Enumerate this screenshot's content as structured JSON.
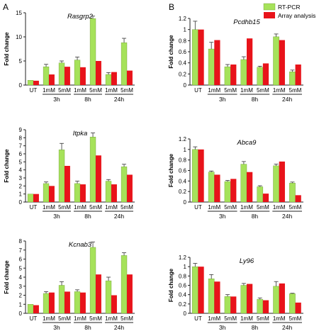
{
  "panel_labels": [
    "A",
    "B"
  ],
  "colors": {
    "rt_pcr": "#a6e25a",
    "array": "#e8131a",
    "axis": "#222222",
    "error": "#333333"
  },
  "legend": {
    "position": "top-right",
    "items": [
      "RT-PCR",
      "Array analysis"
    ]
  },
  "chart_data": [
    {
      "type": "bar",
      "panel": "A",
      "title": "Rasgrp2",
      "ylabel": "Fold change",
      "ylim": [
        0,
        15
      ],
      "yticks": [
        0,
        5,
        10,
        15
      ],
      "categories": [
        "UT",
        "1mM",
        "5mM",
        "1mM",
        "5mM",
        "1mM",
        "5mM"
      ],
      "time_groups": [
        {
          "label": "3h",
          "start": 1,
          "end": 2
        },
        {
          "label": "8h",
          "start": 3,
          "end": 4
        },
        {
          "label": "24h",
          "start": 5,
          "end": 6
        }
      ],
      "series": [
        {
          "name": "RT-PCR",
          "values": [
            1.0,
            3.8,
            4.6,
            5.2,
            13.8,
            2.2,
            8.8
          ],
          "errors": [
            0,
            0.5,
            0.4,
            0.6,
            0.5,
            0.4,
            0.9
          ]
        },
        {
          "name": "Array analysis",
          "values": [
            0.9,
            2.2,
            3.8,
            3.7,
            5.0,
            2.7,
            3.0
          ]
        }
      ]
    },
    {
      "type": "bar",
      "panel": "A",
      "title": "Itpka",
      "ylabel": "Fold change",
      "ylim": [
        0,
        9
      ],
      "yticks": [
        0,
        1,
        2,
        3,
        4,
        5,
        6,
        7,
        8,
        9
      ],
      "categories": [
        "UT",
        "1mM",
        "5mM",
        "1mM",
        "5mM",
        "1mM",
        "5mM"
      ],
      "time_groups": [
        {
          "label": "3h",
          "start": 1,
          "end": 2
        },
        {
          "label": "8h",
          "start": 3,
          "end": 4
        },
        {
          "label": "24h",
          "start": 5,
          "end": 6
        }
      ],
      "series": [
        {
          "name": "RT-PCR",
          "values": [
            1.0,
            2.3,
            6.5,
            2.3,
            8.1,
            2.6,
            4.4
          ],
          "errors": [
            0,
            0.2,
            0.8,
            0.3,
            0.5,
            0.2,
            0.3
          ]
        },
        {
          "name": "Array analysis",
          "values": [
            1.0,
            2.0,
            4.5,
            2.2,
            5.8,
            2.2,
            3.4
          ]
        }
      ]
    },
    {
      "type": "bar",
      "panel": "A",
      "title": "Kcnab3",
      "ylabel": "Fold change",
      "ylim": [
        0,
        8
      ],
      "yticks": [
        0,
        1,
        2,
        3,
        4,
        5,
        6,
        7,
        8
      ],
      "categories": [
        "UT",
        "1mM",
        "5mM",
        "1mM",
        "5mM",
        "1mM",
        "5mM"
      ],
      "time_groups": [
        {
          "label": "3h",
          "start": 1,
          "end": 2
        },
        {
          "label": "8h",
          "start": 3,
          "end": 4
        },
        {
          "label": "24h",
          "start": 5,
          "end": 6
        }
      ],
      "series": [
        {
          "name": "RT-PCR",
          "values": [
            1.0,
            2.2,
            3.1,
            2.4,
            7.3,
            3.6,
            6.4
          ],
          "errors": [
            0,
            0.2,
            0.4,
            0.2,
            0.6,
            0.4,
            0.3
          ]
        },
        {
          "name": "Array analysis",
          "values": [
            0.9,
            2.3,
            2.4,
            2.3,
            4.3,
            2.0,
            4.3
          ]
        }
      ]
    },
    {
      "type": "bar",
      "panel": "B",
      "title": "Pcdhb15",
      "ylabel": "Fold change",
      "ylim": [
        0,
        1.2
      ],
      "yticks": [
        0,
        0.2,
        0.4,
        0.6,
        0.8,
        1,
        1.2
      ],
      "categories": [
        "UT",
        "1mM",
        "5mM",
        "1mM",
        "5mM",
        "1mM",
        "5mM"
      ],
      "time_groups": [
        {
          "label": "3h",
          "start": 1,
          "end": 2
        },
        {
          "label": "8h",
          "start": 3,
          "end": 4
        },
        {
          "label": "24h",
          "start": 5,
          "end": 6
        }
      ],
      "series": [
        {
          "name": "RT-PCR",
          "values": [
            1.0,
            0.65,
            0.33,
            0.46,
            0.32,
            0.87,
            0.24
          ],
          "errors": [
            0.15,
            0.12,
            0.04,
            0.05,
            0.02,
            0.05,
            0.03
          ]
        },
        {
          "name": "Array analysis",
          "values": [
            1.0,
            0.81,
            0.37,
            0.84,
            0.39,
            0.81,
            0.37
          ]
        }
      ]
    },
    {
      "type": "bar",
      "panel": "B",
      "title": "Abca9",
      "ylabel": "Fold change",
      "ylim": [
        0,
        1.2
      ],
      "yticks": [
        0,
        0.2,
        0.4,
        0.6,
        0.8,
        1,
        1.2
      ],
      "categories": [
        "UT",
        "1mM",
        "5mM",
        "1mM",
        "5mM",
        "1mM",
        "5mM"
      ],
      "time_groups": [
        {
          "label": "3h",
          "start": 1,
          "end": 2
        },
        {
          "label": "8h",
          "start": 3,
          "end": 4
        },
        {
          "label": "24h",
          "start": 5,
          "end": 6
        }
      ],
      "series": [
        {
          "name": "RT-PCR",
          "values": [
            1.0,
            0.57,
            0.39,
            0.72,
            0.29,
            0.69,
            0.36
          ],
          "errors": [
            0.05,
            0.02,
            0.02,
            0.05,
            0.02,
            0.03,
            0.02
          ]
        },
        {
          "name": "Array analysis",
          "values": [
            1.0,
            0.52,
            0.44,
            0.57,
            0.16,
            0.77,
            0.13
          ]
        }
      ]
    },
    {
      "type": "bar",
      "panel": "B",
      "title": "Ly96",
      "ylabel": "Fold change",
      "ylim": [
        0,
        1.2
      ],
      "yticks": [
        0,
        0.2,
        0.4,
        0.6,
        0.8,
        1,
        1.2
      ],
      "categories": [
        "UT",
        "1mM",
        "5mM",
        "1mM",
        "5mM",
        "1mM",
        "5mM"
      ],
      "time_groups": [
        {
          "label": "3h",
          "start": 1,
          "end": 2
        },
        {
          "label": "8h",
          "start": 3,
          "end": 4
        },
        {
          "label": "24h",
          "start": 5,
          "end": 6
        }
      ],
      "series": [
        {
          "name": "RT-PCR",
          "values": [
            1.0,
            0.74,
            0.36,
            0.6,
            0.3,
            0.58,
            0.42
          ],
          "errors": [
            0.07,
            0.09,
            0.04,
            0.04,
            0.03,
            0.1,
            0.01
          ]
        },
        {
          "name": "Array analysis",
          "values": [
            1.0,
            0.68,
            0.36,
            0.63,
            0.28,
            0.64,
            0.23
          ]
        }
      ]
    }
  ]
}
